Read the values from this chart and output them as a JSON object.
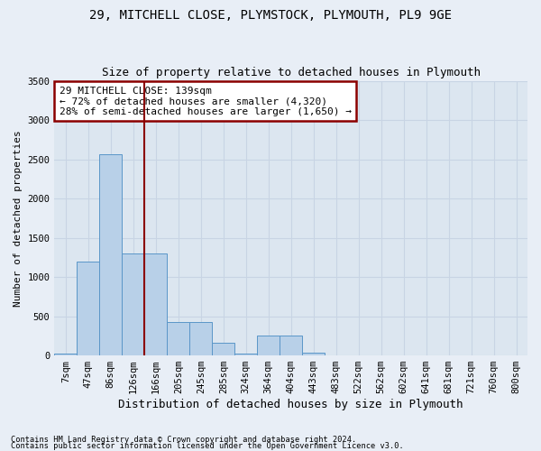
{
  "title1": "29, MITCHELL CLOSE, PLYMSTOCK, PLYMOUTH, PL9 9GE",
  "title2": "Size of property relative to detached houses in Plymouth",
  "xlabel": "Distribution of detached houses by size in Plymouth",
  "ylabel": "Number of detached properties",
  "categories": [
    "7sqm",
    "47sqm",
    "86sqm",
    "126sqm",
    "166sqm",
    "205sqm",
    "245sqm",
    "285sqm",
    "324sqm",
    "364sqm",
    "404sqm",
    "443sqm",
    "483sqm",
    "522sqm",
    "562sqm",
    "602sqm",
    "641sqm",
    "681sqm",
    "721sqm",
    "760sqm",
    "800sqm"
  ],
  "values": [
    20,
    1200,
    2560,
    1300,
    1300,
    430,
    430,
    160,
    20,
    250,
    250,
    30,
    0,
    0,
    0,
    0,
    0,
    0,
    0,
    0,
    0
  ],
  "bar_color": "#b8d0e8",
  "bar_edge_color": "#5a96c8",
  "vline_x": 3.5,
  "vline_color": "#8b0000",
  "annotation_text": "29 MITCHELL CLOSE: 139sqm\n← 72% of detached houses are smaller (4,320)\n28% of semi-detached houses are larger (1,650) →",
  "annotation_box_facecolor": "#ffffff",
  "annotation_box_edge": "#8b0000",
  "ylim": [
    0,
    3500
  ],
  "yticks": [
    0,
    500,
    1000,
    1500,
    2000,
    2500,
    3000,
    3500
  ],
  "grid_color": "#c8d4e4",
  "fig_bg_color": "#e8eef6",
  "plot_bg_color": "#dce6f0",
  "footer1": "Contains HM Land Registry data © Crown copyright and database right 2024.",
  "footer2": "Contains public sector information licensed under the Open Government Licence v3.0.",
  "title_fontsize": 10,
  "subtitle_fontsize": 9,
  "ylabel_fontsize": 8,
  "xlabel_fontsize": 9,
  "tick_fontsize": 7.5,
  "annot_fontsize": 8
}
